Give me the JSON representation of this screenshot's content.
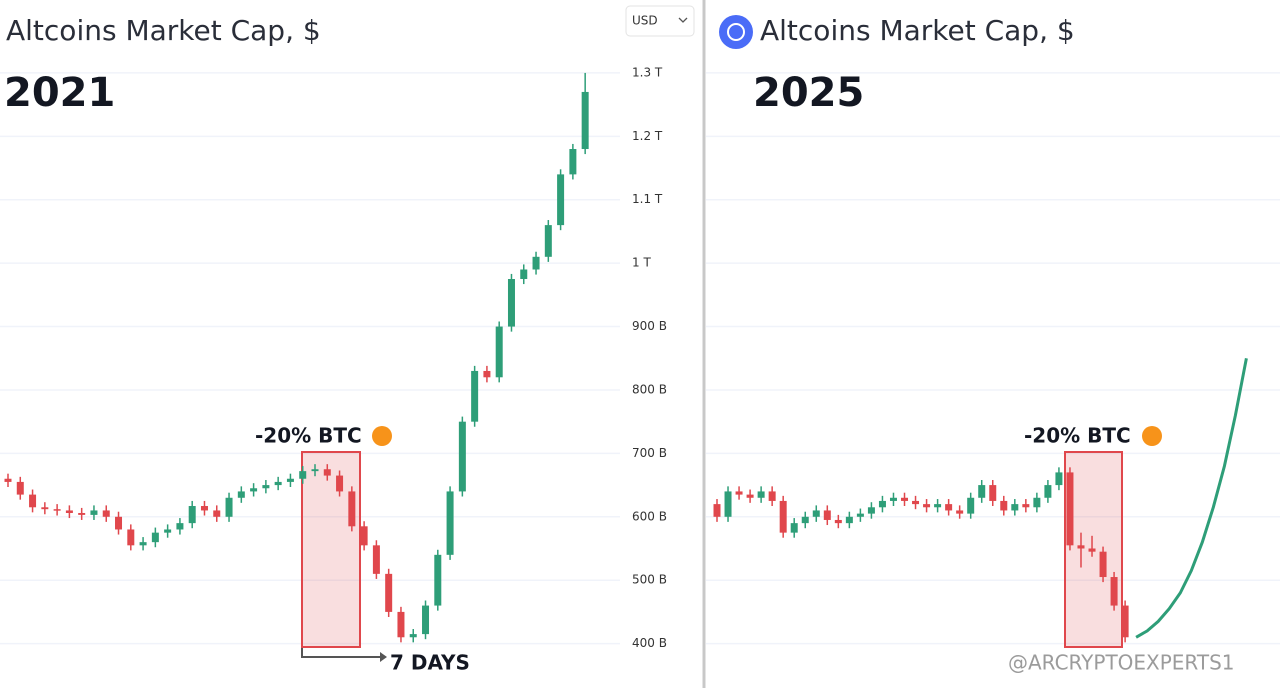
{
  "currency": "USD",
  "watermark": "@ARCRYPTOEXPERTS1",
  "chart_data": [
    {
      "type": "candlestick",
      "title": "Altcoins Market Cap, $",
      "subtitle": "2021",
      "annotations": [
        "-20% BTC",
        "7 DAYS"
      ],
      "up_color": "#2e9e78",
      "down_color": "#e0474c",
      "ylim": [
        330,
        1415
      ],
      "yticks": [
        {
          "value": 1300,
          "label": "1.3 T"
        },
        {
          "value": 1200,
          "label": "1.2 T"
        },
        {
          "value": 1100,
          "label": "1.1 T"
        },
        {
          "value": 1000,
          "label": "1 T"
        },
        {
          "value": 900,
          "label": "900 B"
        },
        {
          "value": 800,
          "label": "800 B"
        },
        {
          "value": 700,
          "label": "700 B"
        },
        {
          "value": 600,
          "label": "600 B"
        },
        {
          "value": 500,
          "label": "500 B"
        },
        {
          "value": 400,
          "label": "400 B"
        }
      ],
      "grid": true,
      "open": [
        660,
        655,
        635,
        615,
        612,
        610,
        606,
        603,
        610,
        600,
        580,
        555,
        560,
        575,
        580,
        590,
        617,
        610,
        600,
        630,
        640,
        645,
        650,
        655,
        660,
        672,
        675,
        665,
        640,
        585,
        555,
        510,
        450,
        410,
        415,
        460,
        540,
        640,
        750,
        830,
        820,
        900,
        975,
        990,
        1010,
        1060,
        1140,
        1180
      ],
      "high": [
        668,
        663,
        643,
        623,
        620,
        618,
        614,
        618,
        618,
        608,
        588,
        568,
        583,
        588,
        598,
        625,
        625,
        618,
        638,
        648,
        653,
        658,
        663,
        668,
        680,
        683,
        683,
        673,
        648,
        593,
        563,
        518,
        458,
        423,
        468,
        548,
        648,
        758,
        838,
        838,
        908,
        983,
        998,
        1018,
        1068,
        1148,
        1188,
        1300
      ],
      "low": [
        647,
        627,
        607,
        604,
        602,
        598,
        595,
        595,
        592,
        572,
        547,
        547,
        552,
        567,
        572,
        582,
        602,
        592,
        592,
        622,
        632,
        637,
        642,
        647,
        652,
        664,
        657,
        632,
        577,
        547,
        502,
        442,
        402,
        402,
        407,
        452,
        532,
        632,
        742,
        812,
        812,
        892,
        967,
        982,
        1002,
        1052,
        1132,
        1172
      ],
      "close": [
        655,
        635,
        615,
        612,
        610,
        606,
        603,
        610,
        600,
        580,
        555,
        560,
        575,
        580,
        590,
        617,
        610,
        600,
        630,
        640,
        645,
        650,
        655,
        660,
        672,
        675,
        665,
        640,
        585,
        555,
        510,
        450,
        410,
        415,
        460,
        540,
        640,
        750,
        830,
        820,
        900,
        975,
        990,
        1010,
        1060,
        1140,
        1180,
        1270
      ]
    },
    {
      "type": "candlestick",
      "title": "Altcoins Market Cap, $",
      "subtitle": "2025",
      "annotations": [
        "-20% BTC"
      ],
      "up_color": "#2e9e78",
      "down_color": "#e0474c",
      "ylim": [
        330,
        1415
      ],
      "open": [
        620,
        600,
        640,
        635,
        630,
        640,
        625,
        575,
        590,
        600,
        610,
        595,
        590,
        600,
        605,
        615,
        625,
        630,
        625,
        620,
        615,
        620,
        610,
        605,
        630,
        650,
        625,
        610,
        620,
        615,
        630,
        650,
        670,
        555,
        550,
        545,
        505,
        460
      ],
      "high": [
        628,
        648,
        648,
        643,
        648,
        648,
        633,
        598,
        608,
        618,
        618,
        603,
        608,
        613,
        623,
        633,
        638,
        638,
        633,
        628,
        628,
        628,
        618,
        638,
        658,
        658,
        633,
        628,
        628,
        638,
        658,
        678,
        678,
        575,
        570,
        553,
        513,
        468
      ],
      "low": [
        592,
        592,
        627,
        622,
        622,
        617,
        567,
        567,
        582,
        592,
        587,
        582,
        582,
        592,
        597,
        607,
        617,
        617,
        612,
        607,
        607,
        602,
        597,
        597,
        622,
        617,
        602,
        602,
        607,
        607,
        622,
        642,
        547,
        520,
        537,
        497,
        452,
        402
      ],
      "close": [
        600,
        640,
        635,
        630,
        640,
        625,
        575,
        590,
        600,
        610,
        595,
        590,
        600,
        605,
        615,
        625,
        630,
        625,
        620,
        615,
        620,
        610,
        605,
        630,
        650,
        625,
        610,
        620,
        615,
        630,
        650,
        670,
        555,
        550,
        545,
        505,
        460,
        410
      ],
      "projection_color": "#2e9e78",
      "projection_values": [
        410,
        420,
        435,
        455,
        480,
        515,
        560,
        615,
        680,
        760,
        850
      ]
    }
  ]
}
